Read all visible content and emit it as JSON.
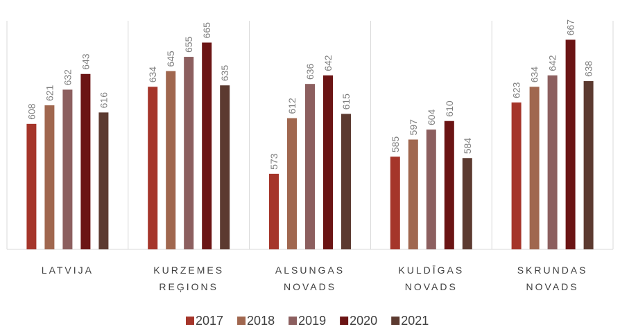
{
  "chart_data": {
    "type": "bar",
    "categories": [
      "LATVIJA",
      "KURZEMES REĢIONS",
      "ALSUNGAS NOVADS",
      "KULDĪGAS NOVADS",
      "SKRUNDAS NOVADS"
    ],
    "series": [
      {
        "name": "2017",
        "color": "#a5352a",
        "values": [
          608,
          634,
          573,
          585,
          623
        ]
      },
      {
        "name": "2018",
        "color": "#a0674f",
        "values": [
          621,
          645,
          612,
          597,
          634
        ]
      },
      {
        "name": "2019",
        "color": "#8c5f5f",
        "values": [
          632,
          655,
          636,
          604,
          642
        ]
      },
      {
        "name": "2020",
        "color": "#6b1414",
        "values": [
          643,
          665,
          642,
          610,
          667
        ]
      },
      {
        "name": "2021",
        "color": "#5c3a30",
        "values": [
          616,
          635,
          615,
          584,
          638
        ]
      }
    ],
    "ylim": [
      520,
      690
    ]
  }
}
